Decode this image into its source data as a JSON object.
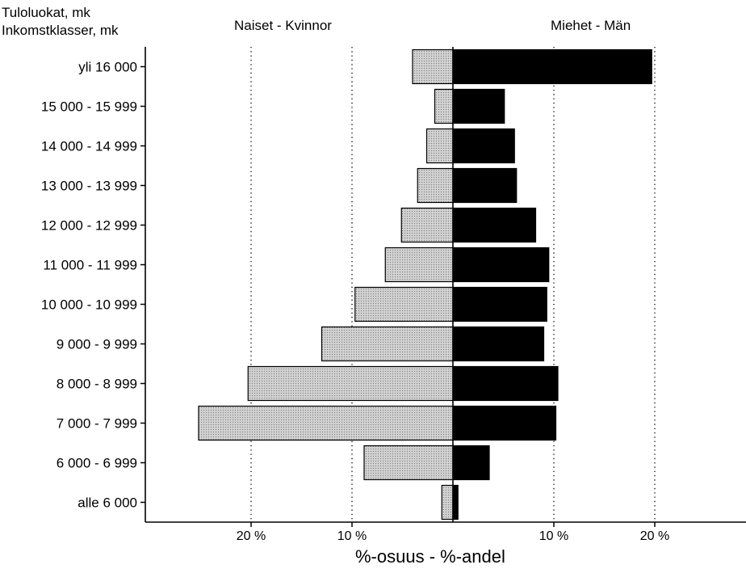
{
  "chart_data": {
    "type": "bar",
    "orientation": "horizontal-population-pyramid",
    "ylabel_lines": [
      "Tuloluokat, mk",
      "Inkomstklasser, mk"
    ],
    "xlabel": "%-osuus - %-andel",
    "categories": [
      "yli 16 000",
      "15 000 - 15 999",
      "14 000 - 14 999",
      "13 000 - 13 999",
      "12 000 - 12 999",
      "11 000 - 11 999",
      "10 000 - 10 999",
      "9 000 - 9 999",
      "8 000 - 8 999",
      "7 000 - 7 999",
      "6 000 - 6 999",
      "alle 6 000"
    ],
    "series": [
      {
        "name": "Naiset - Kvinnor",
        "side": "left",
        "color": "#c8c8c8",
        "values": [
          4.0,
          1.8,
          2.6,
          3.5,
          5.1,
          6.7,
          9.7,
          13.0,
          20.3,
          25.2,
          8.8,
          1.1
        ]
      },
      {
        "name": "Miehet - Män",
        "side": "right",
        "color": "#000000",
        "values": [
          19.7,
          5.1,
          6.1,
          6.3,
          8.2,
          9.5,
          9.3,
          9.0,
          10.4,
          10.2,
          3.6,
          0.5
        ]
      }
    ],
    "xticks": [
      {
        "value": -20,
        "label": "20 %"
      },
      {
        "value": -10,
        "label": "10 %"
      },
      {
        "value": 10,
        "label": "10 %"
      },
      {
        "value": 20,
        "label": "20 %"
      }
    ],
    "xlim": [
      -30,
      29
    ],
    "grid": "vertical dotted at ±10 and ±20"
  }
}
